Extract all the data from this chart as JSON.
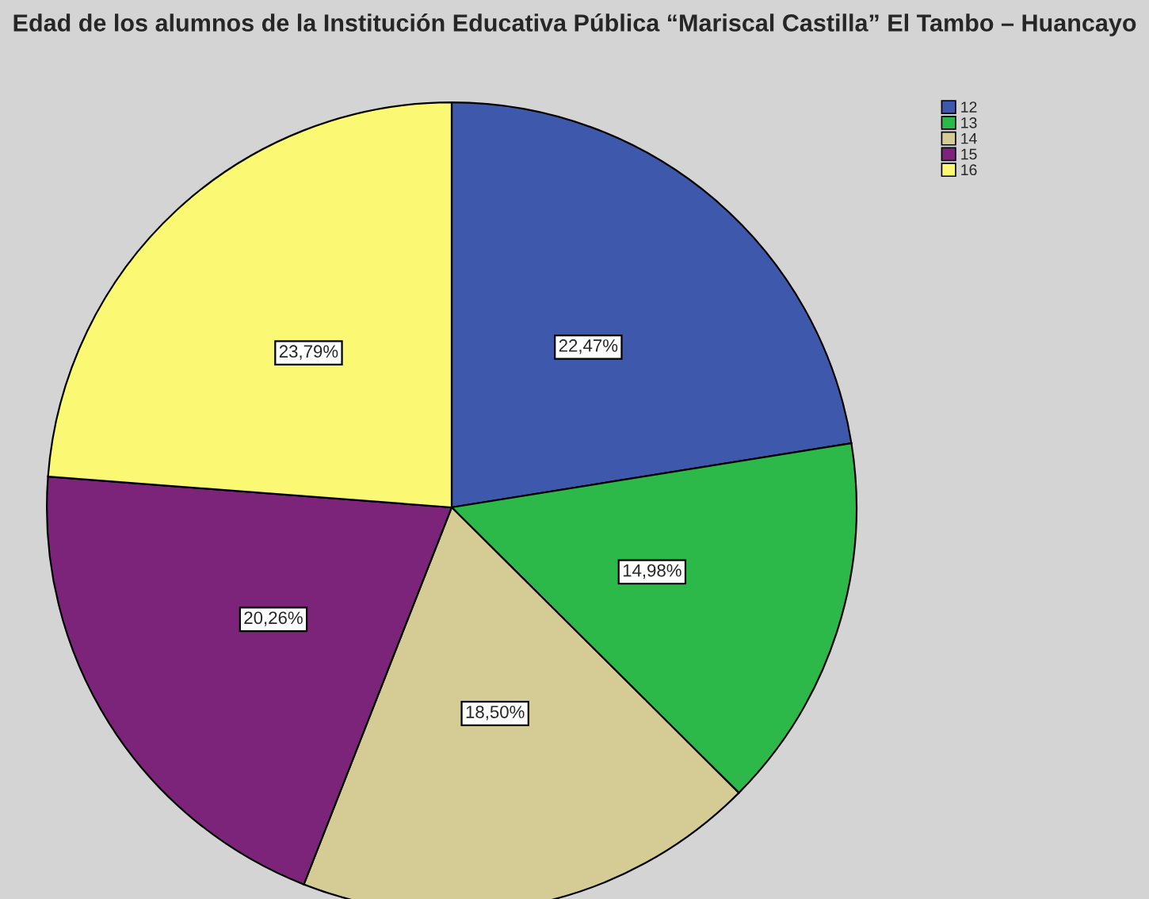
{
  "chart_data": {
    "type": "pie",
    "title": "Edad de los alumnos de la Institución Educativa Pública “Mariscal Castilla” El Tambo – Huancayo",
    "categories": [
      "12",
      "13",
      "14",
      "15",
      "16"
    ],
    "values": [
      22.47,
      14.98,
      18.5,
      20.26,
      23.79
    ],
    "value_labels": [
      "22,47%",
      "14,98%",
      "18,50%",
      "20,26%",
      "23,79%"
    ],
    "colors": [
      "#3e58ac",
      "#2db84a",
      "#d4cc94",
      "#7b2479",
      "#fbf873"
    ],
    "legend": "top right"
  }
}
